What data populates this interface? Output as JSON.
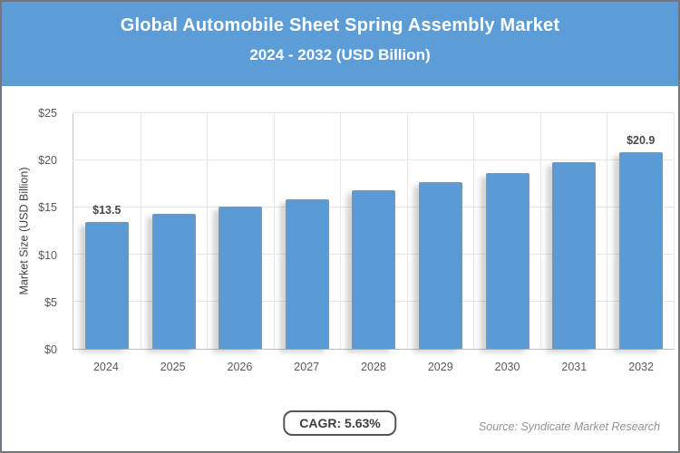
{
  "chart_data": {
    "type": "bar",
    "title": "Global Automobile Sheet Spring Assembly Market",
    "subtitle": "2024 - 2032 (USD Billion)",
    "categories": [
      "2024",
      "2025",
      "2026",
      "2027",
      "2028",
      "2029",
      "2030",
      "2031",
      "2032"
    ],
    "values": [
      13.5,
      14.3,
      15.1,
      15.9,
      16.8,
      17.7,
      18.7,
      19.8,
      20.9
    ],
    "value_labels": [
      {
        "index": 0,
        "text": "$13.5"
      },
      {
        "index": 8,
        "text": "$20.9"
      }
    ],
    "xlabel": "",
    "ylabel": "Market Size (USD Billion)",
    "ylim": [
      0,
      25
    ],
    "yticks": [
      0,
      5,
      10,
      15,
      20,
      25
    ],
    "ytick_labels": [
      "$0",
      "$5",
      "$10",
      "$15",
      "$20",
      "$25"
    ],
    "grid": true,
    "legend": false,
    "bar_color": "#5B9BD5"
  },
  "footer": {
    "cagr_label": "CAGR: 5.63%",
    "source": "Source: Syndicate Market Research"
  },
  "colors": {
    "header_background": "#5C9DD8",
    "header_text": "#FFFFFF",
    "bar": "#5B9BD5",
    "gridline": "#E6E6E6",
    "axis_line": "#C7C7C7",
    "tick_text": "#595959",
    "value_label_text": "#4A4A4A",
    "badge_border": "#555555",
    "source_text": "#8F9396",
    "outer_border": "#71777D"
  }
}
